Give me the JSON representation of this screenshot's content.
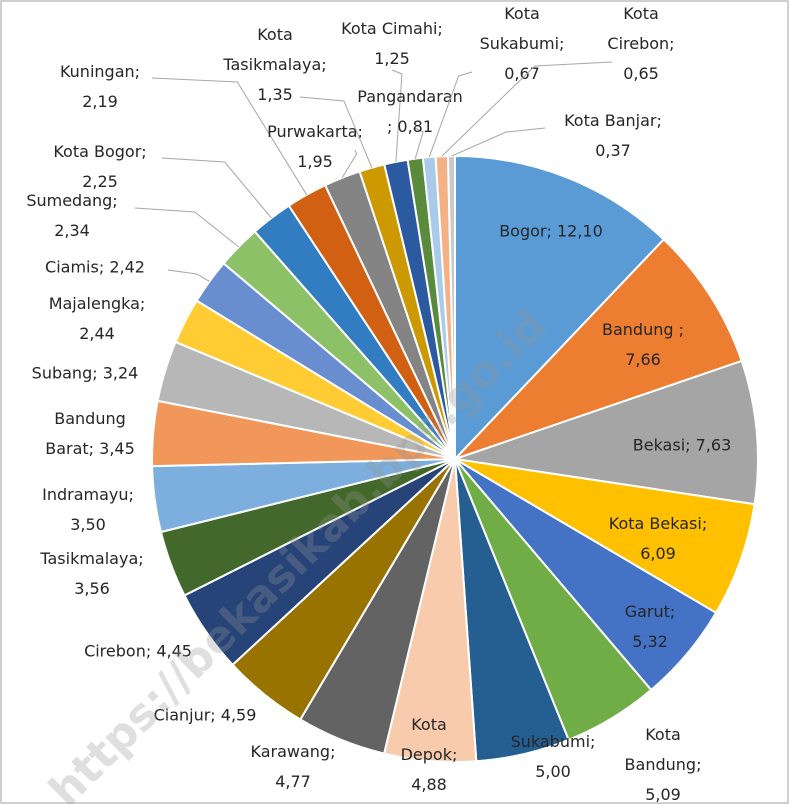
{
  "chart_data": {
    "type": "pie",
    "values": [
      12.1,
      7.66,
      7.63,
      6.09,
      5.32,
      5.09,
      5.0,
      4.88,
      4.77,
      4.59,
      4.45,
      3.56,
      3.5,
      3.45,
      3.24,
      2.44,
      2.42,
      2.34,
      2.25,
      2.19,
      1.95,
      1.35,
      1.25,
      0.81,
      0.67,
      0.65,
      0.37
    ],
    "value_labels": [
      "Bogor; 12,10",
      "Bandung  ;\n7,66",
      "Bekasi; 7,63",
      "Kota Bekasi;\n6,09",
      "Garut;\n5,32",
      "Kota\nBandung;\n5,09",
      "Sukabumi;\n5,00",
      "Kota\nDepok;\n4,88",
      "Karawang;\n4,77",
      "Cianjur; 4,59",
      "Cirebon; 4,45",
      "Tasikmalaya;\n3,56",
      "Indramayu;\n3,50",
      "Bandung\nBarat; 3,45",
      "Subang; 3,24",
      "Majalengka;\n2,44",
      "Ciamis; 2,42",
      "Sumedang;\n2,34",
      "Kota Bogor;\n2,25",
      "Kuningan;\n2,19",
      "Purwakarta;\n1,95",
      "Kota\nTasikmalaya;\n1,35",
      "Kota Cimahi;\n1,25",
      "Pangandaran\n; 0,81",
      "Kota\nSukabumi;\n0,67",
      "Kota\nCirebon;\n0,65",
      "Kota Banjar;\n0,37"
    ],
    "colors": [
      "#5b9bd5",
      "#ed7d31",
      "#a5a5a5",
      "#ffc000",
      "#4472c4",
      "#70ad47",
      "#255e91",
      "#f8cbad",
      "#636363",
      "#997300",
      "#264478",
      "#43682b",
      "#7cafdd",
      "#f1975a",
      "#b7b7b7",
      "#ffcd33",
      "#698ed0",
      "#8cc168",
      "#327dc2",
      "#d26012",
      "#848484",
      "#cc9a00",
      "#2c5aa0",
      "#5a8a3b",
      "#a9cbe9",
      "#f4b183",
      "#c9c9c9"
    ],
    "watermark": "https://bekasikab.bps.go.id"
  }
}
